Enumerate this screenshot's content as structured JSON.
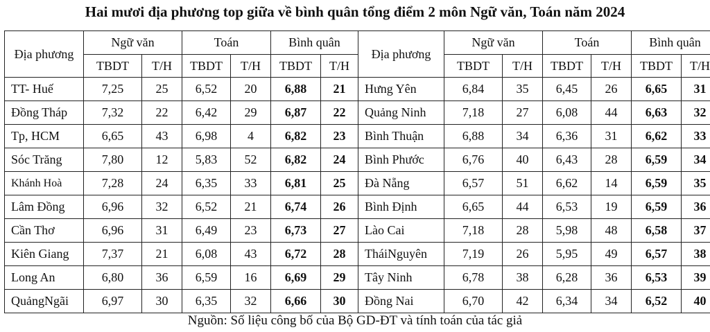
{
  "title": "Hai mươi địa phương top giữa về bình quân tổng điểm 2 môn Ngữ văn, Toán năm 2024",
  "headers": {
    "left_place": "Địa phương",
    "right_place": "Địa phương",
    "group_nguvan": "Ngữ văn",
    "group_toan": "Toán",
    "group_binhquan": "Bình quân",
    "sub_score": "TBDT",
    "sub_rank": "T/H"
  },
  "rows": [
    {
      "left": {
        "place": "TT- Huế",
        "nv": "7,25",
        "nv_r": "25",
        "t": "6,52",
        "t_r": "20",
        "bq": "6,88",
        "bq_r": "21"
      },
      "right": {
        "place": "Hưng Yên",
        "nv": "6,84",
        "nv_r": "35",
        "t": "6,45",
        "t_r": "26",
        "bq": "6,65",
        "bq_r": "31"
      }
    },
    {
      "left": {
        "place": "Đồng Tháp",
        "nv": "7,32",
        "nv_r": "22",
        "t": "6,42",
        "t_r": "29",
        "bq": "6,87",
        "bq_r": "22"
      },
      "right": {
        "place": "Quảng Ninh",
        "nv": "7,18",
        "nv_r": "27",
        "t": "6,08",
        "t_r": "44",
        "bq": "6,63",
        "bq_r": "32"
      }
    },
    {
      "left": {
        "place": "Tp, HCM",
        "nv": "6,65",
        "nv_r": "43",
        "t": "6,98",
        "t_r": "4",
        "bq": "6,82",
        "bq_r": "23"
      },
      "right": {
        "place": "Bình Thuận",
        "nv": "6,88",
        "nv_r": "34",
        "t": "6,36",
        "t_r": "31",
        "bq": "6,62",
        "bq_r": "33"
      }
    },
    {
      "left": {
        "place": "Sóc Trăng",
        "nv": "7,80",
        "nv_r": "12",
        "t": "5,83",
        "t_r": "52",
        "bq": "6,82",
        "bq_r": "24"
      },
      "right": {
        "place": "Bình Phước",
        "nv": "6,76",
        "nv_r": "40",
        "t": "6,43",
        "t_r": "28",
        "bq": "6,59",
        "bq_r": "34"
      }
    },
    {
      "left": {
        "place": "Khánh Hoà",
        "nv": "7,28",
        "nv_r": "24",
        "t": "6,35",
        "t_r": "33",
        "bq": "6,81",
        "bq_r": "25"
      },
      "right": {
        "place": "Đà Nẵng",
        "nv": "6,57",
        "nv_r": "51",
        "t": "6,62",
        "t_r": "14",
        "bq": "6,59",
        "bq_r": "35"
      }
    },
    {
      "left": {
        "place": "Lâm Đồng",
        "nv": "6,96",
        "nv_r": "32",
        "t": "6,52",
        "t_r": "21",
        "bq": "6,74",
        "bq_r": "26"
      },
      "right": {
        "place": "Bình Định",
        "nv": "6,65",
        "nv_r": "44",
        "t": "6,53",
        "t_r": "19",
        "bq": "6,59",
        "bq_r": "36"
      }
    },
    {
      "left": {
        "place": "Cần Thơ",
        "nv": "6,96",
        "nv_r": "31",
        "t": "6,49",
        "t_r": "23",
        "bq": "6,73",
        "bq_r": "27"
      },
      "right": {
        "place": "Lào Cai",
        "nv": "7,18",
        "nv_r": "28",
        "t": "5,98",
        "t_r": "48",
        "bq": "6,58",
        "bq_r": "37"
      }
    },
    {
      "left": {
        "place": "Kiên Giang",
        "nv": "7,37",
        "nv_r": "21",
        "t": "6,08",
        "t_r": "43",
        "bq": "6,72",
        "bq_r": "28"
      },
      "right": {
        "place": "TháiNguyên",
        "nv": "7,19",
        "nv_r": "26",
        "t": "5,95",
        "t_r": "49",
        "bq": "6,57",
        "bq_r": "38"
      }
    },
    {
      "left": {
        "place": "Long An",
        "nv": "6,80",
        "nv_r": "36",
        "t": "6,59",
        "t_r": "16",
        "bq": "6,69",
        "bq_r": "29"
      },
      "right": {
        "place": "Tây Ninh",
        "nv": "6,78",
        "nv_r": "38",
        "t": "6,28",
        "t_r": "36",
        "bq": "6,53",
        "bq_r": "39"
      }
    },
    {
      "left": {
        "place": "QuảngNgãi",
        "nv": "6,97",
        "nv_r": "30",
        "t": "6,35",
        "t_r": "32",
        "bq": "6,66",
        "bq_r": "30"
      },
      "right": {
        "place": "Đồng Nai",
        "nv": "6,70",
        "nv_r": "42",
        "t": "6,34",
        "t_r": "34",
        "bq": "6,52",
        "bq_r": "40"
      }
    }
  ],
  "source": "Nguồn: Số liệu công bố của Bộ GD-ĐT và tính toán của tác giả"
}
